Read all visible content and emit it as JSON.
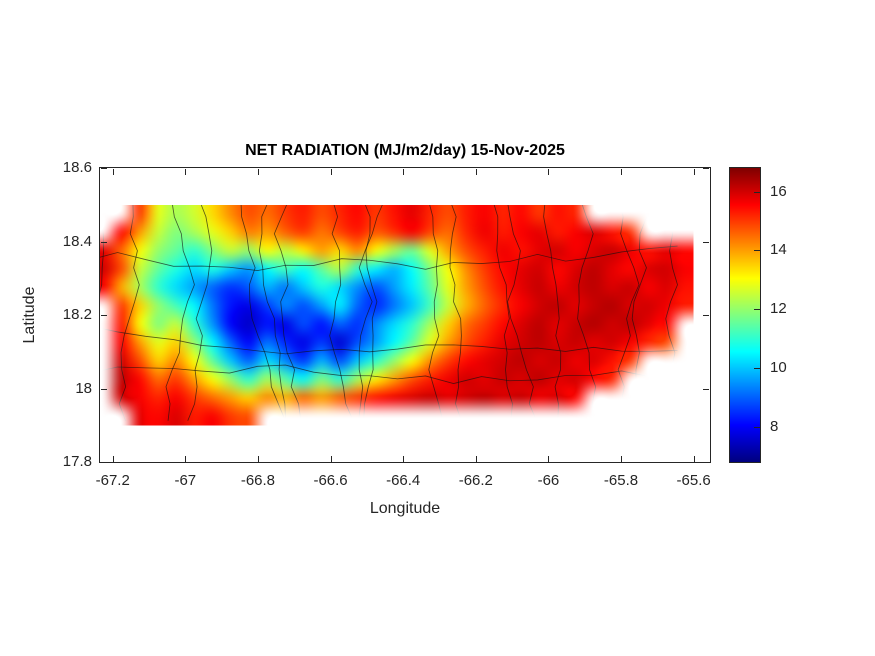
{
  "chart_data": {
    "type": "heatmap",
    "title": "NET RADIATION (MJ/m2/day) 15-Nov-2025",
    "xlabel": "Longitude",
    "ylabel": "Latitude",
    "units": "MJ/m2/day",
    "date": "15-Nov-2025",
    "xlim": [
      -67.235,
      -65.555
    ],
    "ylim": [
      17.8,
      18.6
    ],
    "x_tick_values": [
      -67.2,
      -67.0,
      -66.8,
      -66.6,
      -66.4,
      -66.2,
      -66.0,
      -65.8,
      -65.6
    ],
    "x_tick_labels": [
      "-67.2",
      "-67",
      "-66.8",
      "-66.6",
      "-66.4",
      "-66.2",
      "-66",
      "-65.8",
      "-65.6"
    ],
    "y_tick_values": [
      18.6,
      18.4,
      18.2,
      18.0,
      17.8
    ],
    "y_tick_labels": [
      "18.6",
      "18.4",
      "18.2",
      "18",
      "17.8"
    ],
    "colormap": "jet",
    "clim": [
      6.8,
      16.8
    ],
    "colorbar_tick_values": [
      8,
      10,
      12,
      14,
      16
    ],
    "colorbar_tick_labels": [
      "8",
      "10",
      "12",
      "14",
      "16"
    ],
    "legend_position": "colorbar-right",
    "grid_lines": "municipality-boundaries",
    "grid": {
      "lon_start": -67.25,
      "lat_start": 18.5,
      "cell": 0.05,
      "ncols": 33,
      "nrows": 12,
      "values": [
        [
          null,
          null,
          15.0,
          12.8,
          12.2,
          12.6,
          13.4,
          14.2,
          14.8,
          14.5,
          15.0,
          15.3,
          14.8,
          15.2,
          15.5,
          15.0,
          15.4,
          15.8,
          15.2,
          14.8,
          15.3,
          15.6,
          15.2,
          15.5,
          15.0,
          15.4,
          15.2,
          null,
          null,
          null,
          null,
          null,
          null
        ],
        [
          null,
          15.5,
          14.0,
          12.5,
          11.8,
          12.2,
          12.8,
          13.5,
          14.3,
          14.0,
          14.6,
          15.0,
          14.4,
          14.9,
          15.3,
          14.7,
          15.1,
          15.6,
          14.9,
          14.5,
          15.2,
          15.7,
          15.3,
          15.6,
          15.8,
          15.3,
          15.6,
          15.9,
          15.4,
          15.1,
          null,
          null,
          null
        ],
        [
          15.8,
          14.5,
          13.0,
          12.0,
          11.5,
          11.0,
          11.8,
          12.5,
          12.0,
          13.0,
          12.4,
          13.2,
          14.0,
          13.4,
          14.2,
          13.0,
          12.2,
          11.6,
          12.8,
          14.0,
          14.8,
          15.3,
          15.7,
          15.4,
          15.8,
          16.0,
          15.6,
          15.9,
          16.1,
          15.7,
          15.4,
          15.8,
          15.5
        ],
        [
          16.0,
          14.8,
          12.5,
          11.5,
          10.8,
          10.2,
          10.8,
          10.0,
          9.5,
          10.5,
          11.2,
          10.6,
          11.5,
          12.3,
          11.0,
          10.4,
          9.8,
          10.6,
          11.8,
          13.0,
          14.2,
          15.0,
          15.5,
          15.8,
          16.0,
          15.5,
          15.9,
          16.2,
          15.8,
          15.5,
          15.9,
          16.0,
          15.6
        ],
        [
          15.6,
          13.8,
          12.2,
          11.0,
          10.2,
          9.6,
          9.0,
          8.5,
          8.9,
          9.8,
          9.2,
          10.0,
          10.8,
          10.2,
          9.4,
          8.8,
          9.6,
          10.4,
          11.5,
          12.8,
          14.0,
          14.8,
          15.4,
          15.8,
          16.1,
          15.7,
          16.0,
          16.2,
          15.9,
          16.1,
          15.6,
          15.9,
          15.4
        ],
        [
          null,
          15.0,
          13.5,
          12.0,
          11.2,
          10.5,
          9.2,
          8.2,
          7.8,
          8.6,
          9.4,
          8.8,
          9.6,
          10.4,
          9.0,
          8.4,
          9.2,
          10.0,
          11.2,
          12.5,
          13.8,
          14.6,
          15.2,
          15.6,
          16.0,
          16.2,
          15.8,
          16.1,
          16.3,
          15.9,
          16.0,
          15.7,
          15.3
        ],
        [
          null,
          15.3,
          13.0,
          11.8,
          12.5,
          11.0,
          9.5,
          8.0,
          7.5,
          8.2,
          7.8,
          8.8,
          8.2,
          9.0,
          8.5,
          9.4,
          10.2,
          11.0,
          12.2,
          13.5,
          14.5,
          15.0,
          15.5,
          15.9,
          16.2,
          15.8,
          16.1,
          16.3,
          16.0,
          16.2,
          15.8,
          15.5,
          null
        ],
        [
          null,
          15.6,
          14.0,
          12.8,
          13.5,
          12.0,
          10.5,
          9.0,
          8.0,
          9.2,
          8.4,
          7.8,
          8.6,
          7.6,
          8.8,
          9.6,
          10.5,
          11.5,
          12.8,
          14.0,
          14.8,
          15.3,
          15.8,
          16.0,
          16.2,
          15.9,
          16.1,
          15.8,
          16.0,
          15.6,
          15.2,
          14.8,
          null
        ],
        [
          null,
          16.0,
          14.8,
          13.5,
          14.2,
          13.0,
          11.5,
          10.0,
          9.0,
          10.2,
          9.4,
          8.6,
          9.8,
          8.8,
          10.0,
          11.0,
          12.0,
          13.0,
          14.2,
          15.0,
          15.5,
          15.8,
          16.0,
          16.2,
          15.9,
          16.1,
          15.7,
          15.9,
          15.4,
          15.0,
          null,
          null,
          null
        ],
        [
          null,
          16.2,
          15.5,
          14.5,
          15.0,
          14.0,
          13.0,
          12.0,
          11.0,
          12.2,
          11.4,
          10.6,
          11.8,
          11.0,
          12.2,
          13.2,
          14.0,
          14.8,
          15.3,
          15.7,
          16.0,
          15.8,
          16.1,
          15.9,
          16.2,
          15.8,
          16.0,
          15.5,
          15.2,
          null,
          null,
          null,
          null
        ],
        [
          null,
          16.0,
          15.6,
          15.2,
          15.6,
          15.0,
          14.5,
          14.0,
          13.5,
          14.2,
          13.8,
          14.5,
          14.0,
          14.6,
          15.0,
          15.4,
          15.7,
          15.9,
          16.1,
          15.8,
          16.0,
          16.2,
          15.9,
          16.1,
          15.7,
          15.9,
          15.5,
          null,
          null,
          null,
          null,
          null,
          null
        ],
        [
          null,
          null,
          15.8,
          15.5,
          15.9,
          15.3,
          15.6,
          15.0,
          14.8,
          null,
          null,
          null,
          null,
          null,
          null,
          null,
          null,
          null,
          null,
          null,
          null,
          null,
          null,
          null,
          null,
          null,
          null,
          null,
          null,
          null,
          null,
          null,
          null
        ]
      ]
    }
  }
}
